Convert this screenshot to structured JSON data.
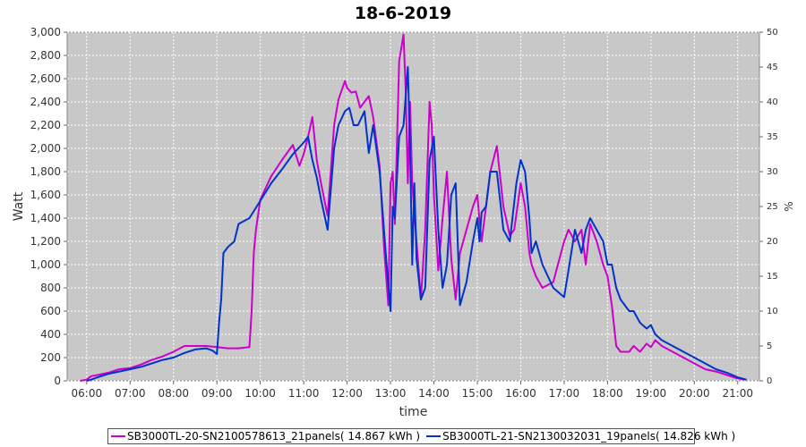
{
  "chart_data": {
    "type": "line",
    "title": "18-6-2019",
    "xlabel": "time",
    "ylabel": "Watt",
    "y2label": "%",
    "xlim": [
      5.55,
      21.5
    ],
    "ylim": [
      0,
      3000
    ],
    "y2lim": [
      0,
      50
    ],
    "grid": true,
    "legend_position": "bottom",
    "background": "#c8c8c8",
    "xticks": [
      "06:00",
      "07:00",
      "08:00",
      "09:00",
      "10:00",
      "11:00",
      "12:00",
      "13:00",
      "14:00",
      "15:00",
      "16:00",
      "17:00",
      "18:00",
      "19:00",
      "20:00",
      "21:00"
    ],
    "yticks": [
      "0",
      "200",
      "400",
      "600",
      "800",
      "1,000",
      "1,200",
      "1,400",
      "1,600",
      "1,800",
      "2,000",
      "2,200",
      "2,400",
      "2,600",
      "2,800",
      "3,000"
    ],
    "y2ticks": [
      "0",
      "5",
      "10",
      "15",
      "20",
      "25",
      "30",
      "35",
      "40",
      "45",
      "50"
    ],
    "series": [
      {
        "name": "SB3000TL-20-SN2100578613_21panels( 14.867 kWh )",
        "color": "#cc00cc",
        "x": [
          5.85,
          6.0,
          6.1,
          6.25,
          6.5,
          6.75,
          7.0,
          7.25,
          7.5,
          7.75,
          8.0,
          8.25,
          8.5,
          8.75,
          9.0,
          9.25,
          9.5,
          9.75,
          9.8,
          9.85,
          9.9,
          10.0,
          10.25,
          10.5,
          10.75,
          10.9,
          11.0,
          11.1,
          11.2,
          11.3,
          11.4,
          11.55,
          11.7,
          11.8,
          11.95,
          12.0,
          12.1,
          12.2,
          12.3,
          12.5,
          12.6,
          12.75,
          12.85,
          12.95,
          13.0,
          13.05,
          13.1,
          13.2,
          13.3,
          13.35,
          13.4,
          13.45,
          13.5,
          13.6,
          13.7,
          13.8,
          13.9,
          13.95,
          14.0,
          14.1,
          14.2,
          14.3,
          14.4,
          14.5,
          14.6,
          14.75,
          14.9,
          15.0,
          15.05,
          15.1,
          15.2,
          15.3,
          15.45,
          15.6,
          15.75,
          15.85,
          16.0,
          16.1,
          16.2,
          16.25,
          16.35,
          16.5,
          16.75,
          17.0,
          17.1,
          17.25,
          17.4,
          17.5,
          17.6,
          17.75,
          17.9,
          18.0,
          18.1,
          18.2,
          18.3,
          18.5,
          18.6,
          18.75,
          18.9,
          19.0,
          19.1,
          19.25,
          19.5,
          19.75,
          20.0,
          20.25,
          20.5,
          20.75,
          21.0,
          21.2
        ],
        "y": [
          0,
          10,
          40,
          50,
          70,
          100,
          110,
          140,
          180,
          210,
          250,
          300,
          300,
          300,
          290,
          280,
          280,
          290,
          600,
          1100,
          1300,
          1560,
          1760,
          1900,
          2030,
          1850,
          1950,
          2100,
          2270,
          1900,
          1700,
          1420,
          2200,
          2420,
          2580,
          2520,
          2480,
          2490,
          2350,
          2450,
          2270,
          1850,
          1150,
          650,
          1700,
          1800,
          1350,
          2750,
          2980,
          2500,
          1700,
          2400,
          1700,
          1200,
          700,
          1300,
          2400,
          2200,
          1600,
          950,
          1400,
          1800,
          1050,
          700,
          1100,
          1300,
          1500,
          1600,
          1380,
          1200,
          1500,
          1800,
          2020,
          1500,
          1250,
          1300,
          1700,
          1500,
          1100,
          1000,
          900,
          800,
          850,
          1200,
          1300,
          1200,
          1300,
          1000,
          1350,
          1200,
          1000,
          900,
          650,
          300,
          250,
          250,
          300,
          250,
          320,
          290,
          350,
          300,
          250,
          200,
          150,
          100,
          80,
          50,
          20,
          10
        ]
      },
      {
        "name": "SB3000TL-21-SN2130032031_19panels( 14.826 kWh )",
        "color": "#0033cc",
        "x": [
          6.0,
          6.1,
          6.25,
          6.5,
          6.75,
          7.0,
          7.25,
          7.5,
          7.75,
          8.0,
          8.25,
          8.5,
          8.75,
          8.9,
          9.0,
          9.05,
          9.1,
          9.15,
          9.25,
          9.4,
          9.5,
          9.75,
          10.0,
          10.25,
          10.5,
          10.75,
          11.0,
          11.1,
          11.2,
          11.3,
          11.4,
          11.55,
          11.7,
          11.8,
          11.95,
          12.05,
          12.15,
          12.25,
          12.4,
          12.5,
          12.6,
          12.75,
          12.9,
          13.0,
          13.05,
          13.1,
          13.2,
          13.3,
          13.4,
          13.45,
          13.5,
          13.55,
          13.6,
          13.7,
          13.8,
          13.9,
          14.0,
          14.1,
          14.2,
          14.3,
          14.4,
          14.5,
          14.6,
          14.75,
          14.9,
          15.0,
          15.05,
          15.1,
          15.2,
          15.3,
          15.45,
          15.6,
          15.75,
          15.9,
          16.0,
          16.1,
          16.2,
          16.25,
          16.35,
          16.5,
          16.75,
          17.0,
          17.1,
          17.25,
          17.4,
          17.5,
          17.6,
          17.75,
          17.9,
          18.0,
          18.1,
          18.2,
          18.3,
          18.5,
          18.6,
          18.75,
          18.9,
          19.0,
          19.1,
          19.25,
          19.5,
          19.75,
          20.0,
          20.25,
          20.5,
          20.75,
          21.0,
          21.2
        ],
        "y": [
          0,
          10,
          30,
          60,
          80,
          100,
          120,
          150,
          180,
          200,
          240,
          270,
          280,
          260,
          230,
          500,
          700,
          1100,
          1150,
          1200,
          1350,
          1400,
          1550,
          1700,
          1820,
          1950,
          2050,
          2100,
          1900,
          1750,
          1560,
          1300,
          2000,
          2200,
          2320,
          2350,
          2200,
          2200,
          2320,
          1960,
          2200,
          1800,
          1050,
          600,
          1500,
          1400,
          2100,
          2200,
          2700,
          2000,
          1000,
          1700,
          1050,
          700,
          800,
          1900,
          2100,
          1300,
          800,
          1000,
          1600,
          1700,
          650,
          850,
          1200,
          1400,
          1200,
          1450,
          1500,
          1800,
          1800,
          1300,
          1200,
          1700,
          1900,
          1800,
          1400,
          1100,
          1200,
          1000,
          800,
          720,
          950,
          1300,
          1100,
          1300,
          1400,
          1300,
          1200,
          1000,
          1000,
          800,
          700,
          600,
          600,
          500,
          450,
          480,
          400,
          350,
          300,
          250,
          200,
          150,
          100,
          70,
          30,
          10
        ]
      }
    ]
  }
}
